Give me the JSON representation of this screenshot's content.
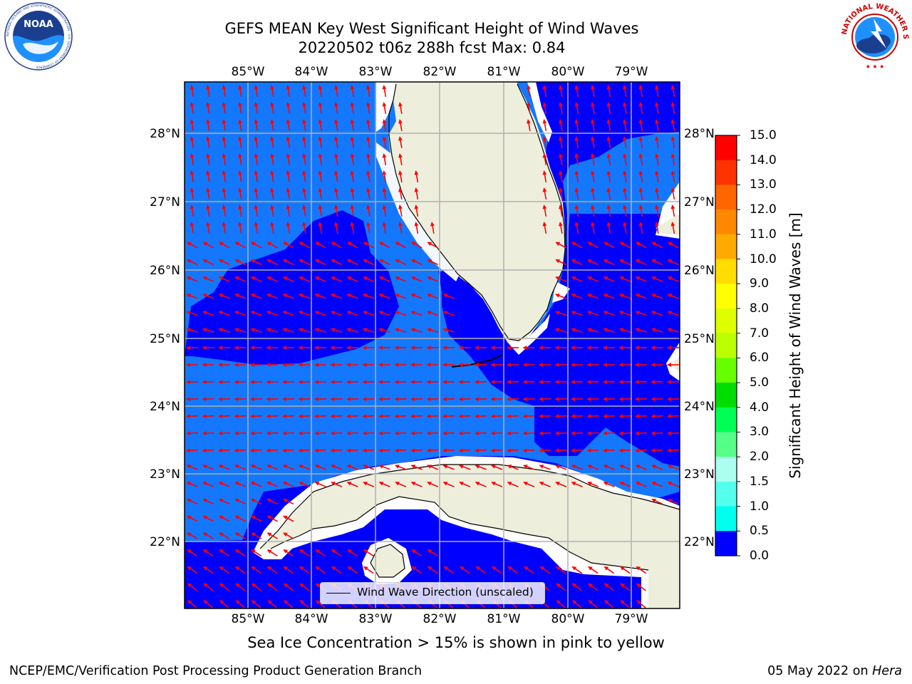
{
  "header": {
    "title_line1": "GEFS MEAN Key West Significant Height of Wind Waves",
    "title_line2": "20220502 t06z 288h fcst   Max: 0.84"
  },
  "logos": {
    "noaa_text": "NOAA",
    "noaa_ring_text": "NATIONAL OCEANIC AND ATMOSPHERIC ADMINISTRATION · U.S. DEPARTMENT OF COMMERCE",
    "nws_ring_text": "NATIONAL WEATHER SERVICE"
  },
  "map": {
    "lon_labels": [
      "85°W",
      "84°W",
      "83°W",
      "82°W",
      "81°W",
      "80°W",
      "79°W"
    ],
    "lat_labels": [
      "28°N",
      "27°N",
      "26°N",
      "25°N",
      "24°N",
      "23°N",
      "22°N"
    ],
    "legend_label": "Wind Wave Direction (unscaled)",
    "colors": {
      "land": "#EEEEDD",
      "level_0_0_5": "#0000FF",
      "level_0_5_1_0": "#1478FF",
      "arrow": "#FF0000",
      "grid": "#B0B0B0"
    }
  },
  "colorbar": {
    "label": "Significant Height of Wind Waves [m]",
    "ticks": [
      "15.0",
      "14.0",
      "13.0",
      "12.0",
      "11.0",
      "10.0",
      "9.0",
      "8.0",
      "7.0",
      "6.0",
      "5.0",
      "4.0",
      "3.0",
      "2.0",
      "1.5",
      "1.0",
      "0.5",
      "0.0"
    ],
    "colors": [
      "#FF0000",
      "#FF3300",
      "#FF6600",
      "#FF8800",
      "#FFAA00",
      "#FFDD00",
      "#FFFF00",
      "#DDFF00",
      "#BBFF00",
      "#66FF00",
      "#00DD00",
      "#00FF55",
      "#55FF88",
      "#AAFFEE",
      "#55FFEE",
      "#00FFEE",
      "#1478FF",
      "#0000FF"
    ]
  },
  "footer": {
    "subtitle": "Sea Ice Concentration > 15% is shown in pink to yellow",
    "left": "NCEP/EMC/Verification Post Processing Product Generation Branch",
    "date": "05 May 2022 on",
    "machine": "Hera"
  }
}
